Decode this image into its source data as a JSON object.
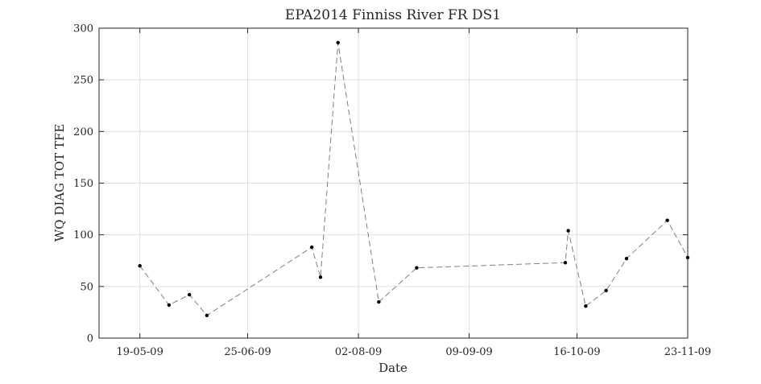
{
  "chart_data": {
    "type": "line",
    "title": "EPA2014 Finniss River FR DS1",
    "xlabel": "Date",
    "ylabel": "WQ DIAG TOT TFE",
    "xlim": [
      "2009-05-05",
      "2009-11-23"
    ],
    "ylim": [
      0,
      300
    ],
    "grid": true,
    "x_ticks": [
      "19-05-09",
      "25-06-09",
      "02-08-09",
      "09-09-09",
      "16-10-09",
      "23-11-09"
    ],
    "x_tick_dates": [
      "2009-05-19",
      "2009-06-25",
      "2009-08-02",
      "2009-09-09",
      "2009-10-16",
      "2009-11-23"
    ],
    "y_ticks": [
      0,
      50,
      100,
      150,
      200,
      250,
      300
    ],
    "line_style": "dashed",
    "line_color": "#7f7f7f",
    "marker_color": "#000000",
    "series": [
      {
        "x": [
          "2009-05-19",
          "2009-05-29",
          "2009-06-05",
          "2009-06-11",
          "2009-07-17",
          "2009-07-20",
          "2009-07-26",
          "2009-08-09",
          "2009-08-22",
          "2009-10-12",
          "2009-10-13",
          "2009-10-19",
          "2009-10-26",
          "2009-11-02",
          "2009-11-16",
          "2009-11-23"
        ],
        "y": [
          70,
          32,
          42,
          22,
          88,
          59,
          286,
          35,
          68,
          73,
          104,
          31,
          46,
          77,
          114,
          78
        ]
      }
    ]
  }
}
